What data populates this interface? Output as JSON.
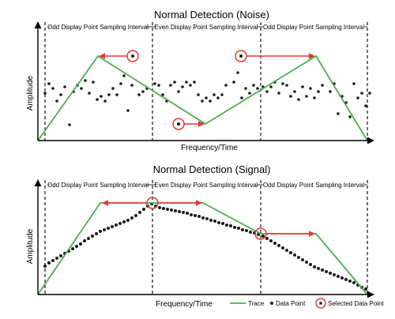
{
  "panels": [
    {
      "title": "Normal Detection (Noise)",
      "x_label": "Frequency/Time",
      "y_label": "Amplitude",
      "intervals": [
        "Odd Display Point Sampling Interval",
        "Even Display Point Sampling Interval",
        "Odd Display Point Sampling Interval"
      ]
    },
    {
      "title": "Normal Detection (Signal)",
      "x_label": "Frequency/Time",
      "y_label": "Amplitude",
      "intervals": [
        "Odd Display Point Sampling Interval",
        "Even Display Point Sampling Interval",
        "Odd Display Point Sampling Interval"
      ]
    }
  ],
  "legend": {
    "trace": "Trace",
    "data_point": "Data Point",
    "selected": "Selected Data Point"
  },
  "colors": {
    "trace": "#4cae4c",
    "arrow": "#e53935",
    "dots": "#1a1a1a",
    "axis": "#000000"
  }
}
